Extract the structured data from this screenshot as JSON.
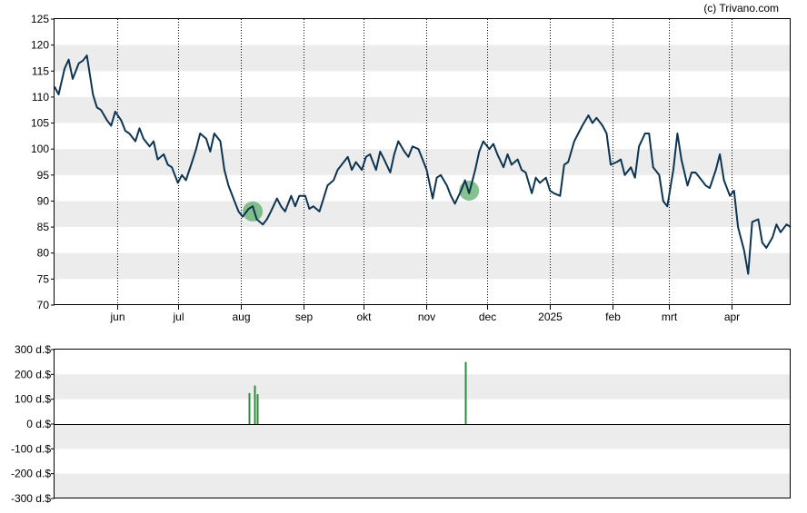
{
  "credit": "(c) Trivano.com",
  "colors": {
    "price_line": "#0d3552",
    "volume_bar": "#2e8b3e",
    "highlight": "#5cae6a",
    "band": "#ececec",
    "axis": "#000000"
  },
  "chart_data": [
    {
      "type": "line",
      "ylim": [
        70,
        125
      ],
      "yticks": [
        70,
        75,
        80,
        85,
        90,
        95,
        100,
        105,
        110,
        115,
        120,
        125
      ],
      "x_tick_labels": [
        "jun",
        "jul",
        "aug",
        "sep",
        "okt",
        "nov",
        "dec",
        "2025",
        "feb",
        "mrt",
        "apr"
      ],
      "x_tick_dates": [
        "2024-06-01",
        "2024-07-01",
        "2024-08-01",
        "2024-09-01",
        "2024-10-01",
        "2024-11-01",
        "2024-12-01",
        "2025-01-01",
        "2025-02-01",
        "2025-03-01",
        "2025-04-01"
      ],
      "xlim": [
        "2024-05-01",
        "2025-04-30"
      ],
      "grid": "vertical dotted at month ticks, alternating horizontal bands",
      "highlights": [
        {
          "x": "2024-08-07",
          "y": 88.0
        },
        {
          "x": "2024-11-22",
          "y": 92.0
        }
      ],
      "series": [
        {
          "x": [
            "2024-05-01",
            "2024-05-03",
            "2024-05-06",
            "2024-05-08",
            "2024-05-10",
            "2024-05-13",
            "2024-05-15",
            "2024-05-17",
            "2024-05-20",
            "2024-05-22",
            "2024-05-24",
            "2024-05-27",
            "2024-05-29",
            "2024-05-31",
            "2024-06-03",
            "2024-06-05",
            "2024-06-07",
            "2024-06-10",
            "2024-06-12",
            "2024-06-14",
            "2024-06-17",
            "2024-06-19",
            "2024-06-21",
            "2024-06-24",
            "2024-06-26",
            "2024-06-28",
            "2024-07-01",
            "2024-07-03",
            "2024-07-05",
            "2024-07-08",
            "2024-07-10",
            "2024-07-12",
            "2024-07-15",
            "2024-07-17",
            "2024-07-19",
            "2024-07-22",
            "2024-07-24",
            "2024-07-26",
            "2024-07-29",
            "2024-07-31",
            "2024-08-02",
            "2024-08-05",
            "2024-08-07",
            "2024-08-09",
            "2024-08-12",
            "2024-08-14",
            "2024-08-16",
            "2024-08-19",
            "2024-08-21",
            "2024-08-23",
            "2024-08-26",
            "2024-08-28",
            "2024-08-30",
            "2024-09-02",
            "2024-09-04",
            "2024-09-06",
            "2024-09-09",
            "2024-09-11",
            "2024-09-13",
            "2024-09-16",
            "2024-09-18",
            "2024-09-20",
            "2024-09-23",
            "2024-09-25",
            "2024-09-27",
            "2024-09-30",
            "2024-10-02",
            "2024-10-04",
            "2024-10-07",
            "2024-10-09",
            "2024-10-11",
            "2024-10-14",
            "2024-10-16",
            "2024-10-18",
            "2024-10-21",
            "2024-10-23",
            "2024-10-25",
            "2024-10-28",
            "2024-10-30",
            "2024-11-01",
            "2024-11-04",
            "2024-11-06",
            "2024-11-08",
            "2024-11-11",
            "2024-11-13",
            "2024-11-15",
            "2024-11-18",
            "2024-11-20",
            "2024-11-22",
            "2024-11-25",
            "2024-11-27",
            "2024-11-29",
            "2024-12-02",
            "2024-12-04",
            "2024-12-06",
            "2024-12-09",
            "2024-12-11",
            "2024-12-13",
            "2024-12-16",
            "2024-12-18",
            "2024-12-20",
            "2024-12-23",
            "2024-12-25",
            "2024-12-27",
            "2024-12-30",
            "2025-01-01",
            "2025-01-03",
            "2025-01-06",
            "2025-01-08",
            "2025-01-10",
            "2025-01-13",
            "2025-01-15",
            "2025-01-17",
            "2025-01-20",
            "2025-01-22",
            "2025-01-24",
            "2025-01-27",
            "2025-01-29",
            "2025-01-31",
            "2025-02-03",
            "2025-02-05",
            "2025-02-07",
            "2025-02-10",
            "2025-02-12",
            "2025-02-14",
            "2025-02-17",
            "2025-02-19",
            "2025-02-21",
            "2025-02-24",
            "2025-02-26",
            "2025-02-28",
            "2025-03-03",
            "2025-03-05",
            "2025-03-07",
            "2025-03-10",
            "2025-03-12",
            "2025-03-14",
            "2025-03-17",
            "2025-03-19",
            "2025-03-21",
            "2025-03-24",
            "2025-03-26",
            "2025-03-28",
            "2025-03-31",
            "2025-04-02",
            "2025-04-04",
            "2025-04-07",
            "2025-04-09",
            "2025-04-11",
            "2025-04-14",
            "2025-04-16",
            "2025-04-18",
            "2025-04-21",
            "2025-04-23",
            "2025-04-25",
            "2025-04-28",
            "2025-04-30"
          ],
          "values": [
            112.0,
            110.5,
            115.5,
            117.2,
            113.5,
            116.5,
            117.0,
            118.0,
            110.5,
            108.0,
            107.5,
            105.5,
            104.5,
            107.2,
            105.5,
            103.5,
            103.0,
            101.5,
            104.0,
            102.0,
            100.5,
            101.5,
            98.0,
            99.0,
            97.0,
            96.5,
            93.5,
            95.0,
            94.0,
            97.5,
            100.0,
            103.0,
            102.0,
            99.5,
            103.0,
            101.5,
            96.0,
            93.0,
            90.0,
            88.0,
            87.0,
            88.5,
            89.0,
            86.5,
            85.5,
            86.5,
            88.0,
            90.5,
            89.0,
            88.0,
            91.0,
            89.0,
            91.0,
            91.0,
            88.5,
            89.0,
            88.0,
            90.5,
            93.0,
            94.0,
            96.0,
            97.0,
            98.5,
            96.0,
            97.5,
            96.0,
            98.5,
            99.0,
            96.0,
            99.5,
            98.0,
            95.5,
            99.0,
            101.5,
            99.5,
            98.5,
            100.5,
            100.0,
            98.0,
            96.0,
            90.5,
            94.5,
            95.0,
            93.0,
            91.0,
            89.5,
            92.0,
            94.0,
            91.5,
            96.0,
            99.5,
            101.5,
            100.0,
            101.0,
            99.0,
            96.5,
            99.0,
            97.0,
            98.0,
            96.0,
            95.5,
            91.5,
            94.5,
            93.5,
            94.5,
            92.0,
            91.5,
            91.0,
            97.0,
            97.5,
            101.5,
            103.0,
            104.5,
            106.5,
            105.0,
            106.0,
            104.5,
            103.0,
            97.0,
            97.5,
            98.0,
            95.0,
            96.5,
            94.5,
            100.5,
            103.0,
            103.0,
            96.5,
            95.0,
            90.0,
            89.0,
            96.0,
            103.0,
            98.0,
            93.0,
            95.5,
            95.5,
            94.0,
            93.0,
            92.5,
            96.0,
            99.0,
            94.0,
            91.0,
            92.0,
            85.0,
            80.5,
            76.0,
            86.0,
            86.5,
            82.0,
            81.0,
            83.0,
            85.5,
            84.0,
            85.5,
            85.0
          ]
        }
      ]
    },
    {
      "type": "bar",
      "ylim": [
        -300,
        300
      ],
      "yticks": [
        -300,
        -200,
        -100,
        0,
        100,
        200,
        300
      ],
      "ytick_labels": [
        "-300 d.$",
        "-200 d.$",
        "-100 d.$",
        "0 d.$",
        "100 d.$",
        "200 d.$",
        "300 d.$"
      ],
      "xlim": [
        "2024-05-01",
        "2025-04-30"
      ],
      "series": [
        {
          "x": [
            "2024-08-05",
            "2024-08-08",
            "2024-08-09",
            "2024-11-20"
          ],
          "values": [
            125,
            155,
            120,
            250
          ]
        }
      ]
    }
  ]
}
